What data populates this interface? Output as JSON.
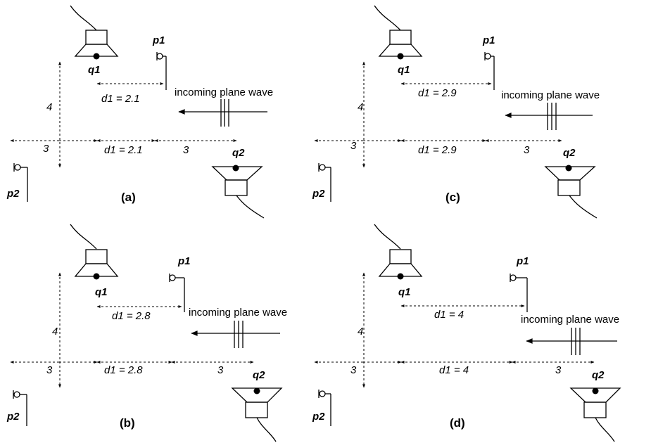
{
  "wave_label": "incoming plane wave",
  "source_top": "q1",
  "source_bottom": "q2",
  "mic_top": "p1",
  "mic_bottom": "p2",
  "height_value": "4",
  "side_value": "3",
  "panels": [
    {
      "id": "a",
      "caption": "(a)",
      "d1_label": "d1 = 2.1"
    },
    {
      "id": "b",
      "caption": "(b)",
      "d1_label": "d1 = 2.8"
    },
    {
      "id": "c",
      "caption": "(c)",
      "d1_label": "d1 = 2.9"
    },
    {
      "id": "d",
      "caption": "(d)",
      "d1_label": "d1 = 4"
    }
  ]
}
